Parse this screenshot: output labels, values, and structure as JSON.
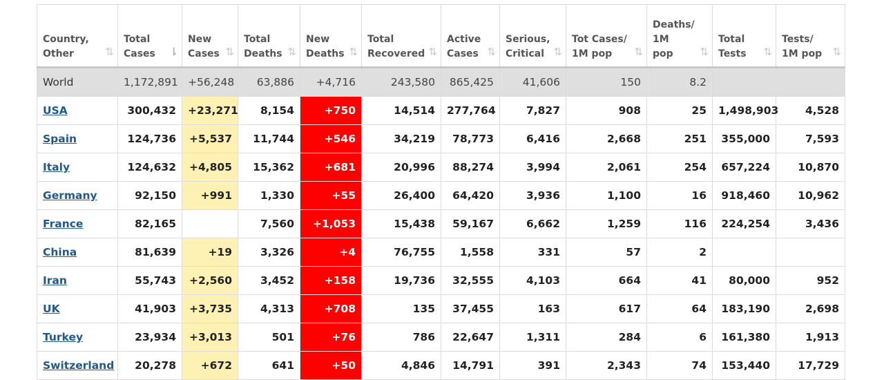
{
  "columns": [
    {
      "label": "Country,\nOther"
    },
    {
      "label": "Total\nCases"
    },
    {
      "label": "New\nCases"
    },
    {
      "label": "Total\nDeaths"
    },
    {
      "label": "New\nDeaths"
    },
    {
      "label": "Total\nRecovered"
    },
    {
      "label": "Active\nCases"
    },
    {
      "label": "Serious,\nCritical"
    },
    {
      "label": "Tot Cases/\n1M pop"
    },
    {
      "label": "Deaths/\n1M\npop"
    },
    {
      "label": "Total\nTests"
    },
    {
      "label": "Tests/\n1M pop"
    }
  ],
  "sort_icon": "⇅",
  "sort_icon_active": "⇂",
  "world": {
    "country": "World",
    "total_cases": "1,172,891",
    "new_cases": "+56,248",
    "total_deaths": "63,886",
    "new_deaths": "+4,716",
    "total_recovered": "243,580",
    "active_cases": "865,425",
    "serious": "41,606",
    "cases_per_1m": "150",
    "deaths_per_1m": "8.2",
    "total_tests": "",
    "tests_per_1m": ""
  },
  "rows": [
    {
      "country": "USA",
      "total_cases": "300,432",
      "new_cases": "+23,271",
      "total_deaths": "8,154",
      "new_deaths": "+750",
      "total_recovered": "14,514",
      "active_cases": "277,764",
      "serious": "7,827",
      "cases_per_1m": "908",
      "deaths_per_1m": "25",
      "total_tests": "1,498,903",
      "tests_per_1m": "4,528"
    },
    {
      "country": "Spain",
      "total_cases": "124,736",
      "new_cases": "+5,537",
      "total_deaths": "11,744",
      "new_deaths": "+546",
      "total_recovered": "34,219",
      "active_cases": "78,773",
      "serious": "6,416",
      "cases_per_1m": "2,668",
      "deaths_per_1m": "251",
      "total_tests": "355,000",
      "tests_per_1m": "7,593"
    },
    {
      "country": "Italy",
      "total_cases": "124,632",
      "new_cases": "+4,805",
      "total_deaths": "15,362",
      "new_deaths": "+681",
      "total_recovered": "20,996",
      "active_cases": "88,274",
      "serious": "3,994",
      "cases_per_1m": "2,061",
      "deaths_per_1m": "254",
      "total_tests": "657,224",
      "tests_per_1m": "10,870"
    },
    {
      "country": "Germany",
      "total_cases": "92,150",
      "new_cases": "+991",
      "total_deaths": "1,330",
      "new_deaths": "+55",
      "total_recovered": "26,400",
      "active_cases": "64,420",
      "serious": "3,936",
      "cases_per_1m": "1,100",
      "deaths_per_1m": "16",
      "total_tests": "918,460",
      "tests_per_1m": "10,962"
    },
    {
      "country": "France",
      "total_cases": "82,165",
      "new_cases": "",
      "total_deaths": "7,560",
      "new_deaths": "+1,053",
      "total_recovered": "15,438",
      "active_cases": "59,167",
      "serious": "6,662",
      "cases_per_1m": "1,259",
      "deaths_per_1m": "116",
      "total_tests": "224,254",
      "tests_per_1m": "3,436"
    },
    {
      "country": "China",
      "total_cases": "81,639",
      "new_cases": "+19",
      "total_deaths": "3,326",
      "new_deaths": "+4",
      "total_recovered": "76,755",
      "active_cases": "1,558",
      "serious": "331",
      "cases_per_1m": "57",
      "deaths_per_1m": "2",
      "total_tests": "",
      "tests_per_1m": ""
    },
    {
      "country": "Iran",
      "total_cases": "55,743",
      "new_cases": "+2,560",
      "total_deaths": "3,452",
      "new_deaths": "+158",
      "total_recovered": "19,736",
      "active_cases": "32,555",
      "serious": "4,103",
      "cases_per_1m": "664",
      "deaths_per_1m": "41",
      "total_tests": "80,000",
      "tests_per_1m": "952"
    },
    {
      "country": "UK",
      "total_cases": "41,903",
      "new_cases": "+3,735",
      "total_deaths": "4,313",
      "new_deaths": "+708",
      "total_recovered": "135",
      "active_cases": "37,455",
      "serious": "163",
      "cases_per_1m": "617",
      "deaths_per_1m": "64",
      "total_tests": "183,190",
      "tests_per_1m": "2,698"
    },
    {
      "country": "Turkey",
      "total_cases": "23,934",
      "new_cases": "+3,013",
      "total_deaths": "501",
      "new_deaths": "+76",
      "total_recovered": "786",
      "active_cases": "22,647",
      "serious": "1,311",
      "cases_per_1m": "284",
      "deaths_per_1m": "6",
      "total_tests": "161,380",
      "tests_per_1m": "1,913"
    },
    {
      "country": "Switzerland",
      "total_cases": "20,278",
      "new_cases": "+672",
      "total_deaths": "641",
      "new_deaths": "+50",
      "total_recovered": "4,846",
      "active_cases": "14,791",
      "serious": "391",
      "cases_per_1m": "2,343",
      "deaths_per_1m": "74",
      "total_tests": "153,440",
      "tests_per_1m": "17,729"
    }
  ],
  "colors": {
    "new_cases_bg": "#fff0b3",
    "new_deaths_bg": "#ff0000",
    "world_bg": "#dfdfdf",
    "link": "#215a8a"
  }
}
